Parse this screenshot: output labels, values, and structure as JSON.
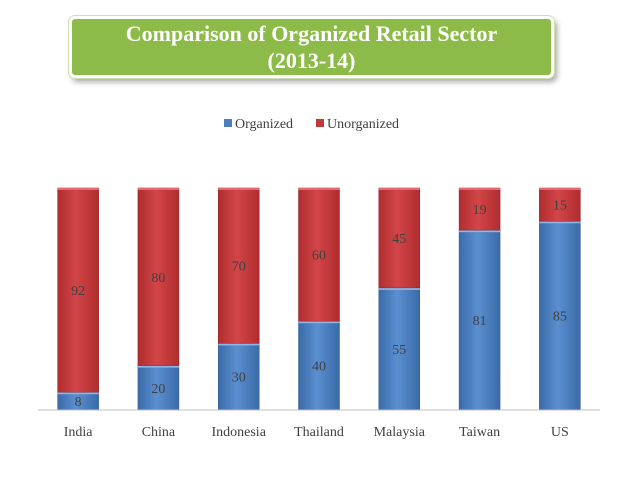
{
  "chart_data": {
    "type": "bar",
    "stacked": true,
    "title_line1": "Comparison of Organized Retail Sector",
    "title_line2": "(2013-14)",
    "categories": [
      "India",
      "China",
      "Indonesia",
      "Thailand",
      "Malaysia",
      "Taiwan",
      "US"
    ],
    "series": [
      {
        "name": "Organized",
        "values": [
          8,
          20,
          30,
          40,
          55,
          81,
          85
        ],
        "color": "#4a7ebf"
      },
      {
        "name": "Unorganized",
        "values": [
          92,
          80,
          70,
          60,
          45,
          19,
          15
        ],
        "color": "#c0393b"
      }
    ],
    "ylim": [
      0,
      100
    ],
    "legend_position": "top",
    "grid": false
  }
}
